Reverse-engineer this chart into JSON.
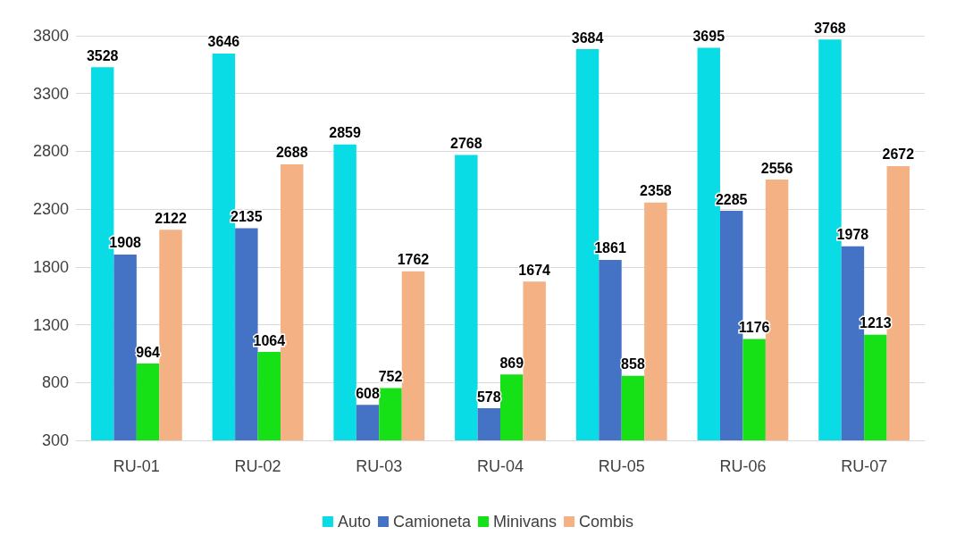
{
  "chart_data": {
    "type": "bar",
    "categories": [
      "RU-01",
      "RU-02",
      "RU-03",
      "RU-04",
      "RU-05",
      "RU-06",
      "RU-07"
    ],
    "series": [
      {
        "name": "Auto",
        "color": "#0adce6",
        "values": [
          3528,
          3646,
          2859,
          2768,
          3684,
          3695,
          3768
        ]
      },
      {
        "name": "Camioneta",
        "color": "#4472c4",
        "values": [
          1908,
          2135,
          608,
          578,
          1861,
          2285,
          1978
        ]
      },
      {
        "name": "Minivans",
        "color": "#16e016",
        "values": [
          964,
          1064,
          752,
          869,
          858,
          1176,
          1213
        ]
      },
      {
        "name": "Combis",
        "color": "#f4b183",
        "values": [
          2122,
          2688,
          1762,
          1674,
          2358,
          2556,
          2672
        ]
      }
    ],
    "ylim": [
      300,
      3800
    ],
    "yticks": [
      300,
      800,
      1300,
      1800,
      2300,
      2800,
      3300,
      3800
    ],
    "grid": "y",
    "legend": "bottom",
    "data_labels": true
  }
}
